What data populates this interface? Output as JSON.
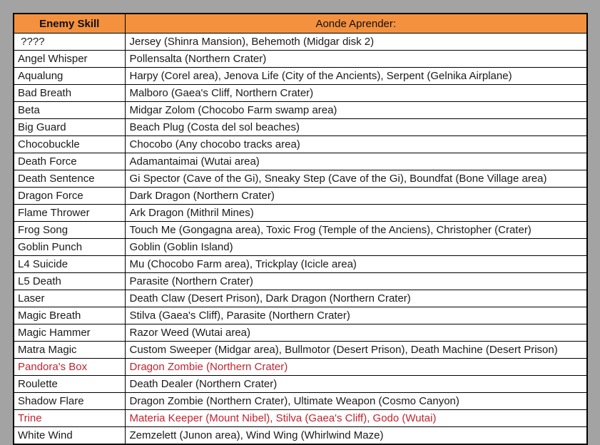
{
  "page": {
    "background": "#A3A3A3"
  },
  "table": {
    "colors": {
      "header_bg": "#F4913E",
      "red_text": "#C1242E",
      "body_text": "#1A1A1A",
      "row_bg": "#FFFFFF",
      "border": "#000000",
      "page_bg": "#A3A3A3"
    },
    "header": {
      "skill": "Enemy Skill",
      "location": "Aonde Aprender:"
    },
    "rows": [
      {
        "skill": " ????",
        "location": "Jersey (Shinra Mansion), Behemoth (Midgar disk 2)",
        "red": false
      },
      {
        "skill": "Angel Whisper",
        "location": "Pollensalta (Northern Crater)",
        "red": false
      },
      {
        "skill": "Aqualung",
        "location": "Harpy (Corel area), Jenova Life (City of the Ancients), Serpent (Gelnika Airplane)",
        "red": false
      },
      {
        "skill": "Bad Breath",
        "location": "Malboro (Gaea's Cliff, Northern Crater)",
        "red": false
      },
      {
        "skill": "Beta",
        "location": "Midgar Zolom (Chocobo Farm swamp area)",
        "red": false
      },
      {
        "skill": "Big Guard",
        "location": "Beach Plug (Costa del sol beaches)",
        "red": false
      },
      {
        "skill": "Chocobuckle",
        "location": "Chocobo (Any chocobo tracks area)",
        "red": false
      },
      {
        "skill": "Death Force",
        "location": "Adamantaimai (Wutai area)",
        "red": false
      },
      {
        "skill": "Death Sentence",
        "location": "Gi Spector (Cave of the Gi), Sneaky Step (Cave of the Gi), Boundfat (Bone Village area)",
        "red": false
      },
      {
        "skill": "Dragon Force",
        "location": "Dark Dragon (Northern Crater)",
        "red": false
      },
      {
        "skill": "Flame Thrower",
        "location": "Ark Dragon (Mithril Mines)",
        "red": false
      },
      {
        "skill": "Frog Song",
        "location": "Touch Me (Gongagna area), Toxic Frog (Temple of the Anciens), Christopher (Crater)",
        "red": false
      },
      {
        "skill": "Goblin Punch",
        "location": "Goblin (Goblin Island)",
        "red": false
      },
      {
        "skill": "L4 Suicide",
        "location": "Mu (Chocobo Farm area), Trickplay (Icicle area)",
        "red": false
      },
      {
        "skill": "L5 Death",
        "location": "Parasite (Northern Crater)",
        "red": false
      },
      {
        "skill": "Laser",
        "location": "Death Claw (Desert Prison), Dark Dragon (Northern Crater)",
        "red": false
      },
      {
        "skill": "Magic Breath",
        "location": "Stilva (Gaea's Cliff), Parasite (Northern Crater)",
        "red": false
      },
      {
        "skill": "Magic Hammer",
        "location": "Razor Weed (Wutai area)",
        "red": false
      },
      {
        "skill": "Matra Magic",
        "location": "Custom Sweeper (Midgar area), Bullmotor (Desert Prison), Death Machine (Desert Prison)",
        "red": false
      },
      {
        "skill": "Pandora's Box",
        "location": "Dragon Zombie (Northern Crater)",
        "red": true
      },
      {
        "skill": "Roulette",
        "location": "Death Dealer (Northern Crater)",
        "red": false
      },
      {
        "skill": "Shadow Flare",
        "location": "Dragon Zombie (Northern Crater), Ultimate Weapon (Cosmo Canyon)",
        "red": false
      },
      {
        "skill": "Trine",
        "location": "Materia Keeper (Mount Nibel), Stilva (Gaea's Cliff), Godo (Wutai)",
        "red": true
      },
      {
        "skill": "White Wind",
        "location": "Zemzelett (Junon area), Wind Wing (Whirlwind Maze)",
        "red": false
      }
    ]
  }
}
